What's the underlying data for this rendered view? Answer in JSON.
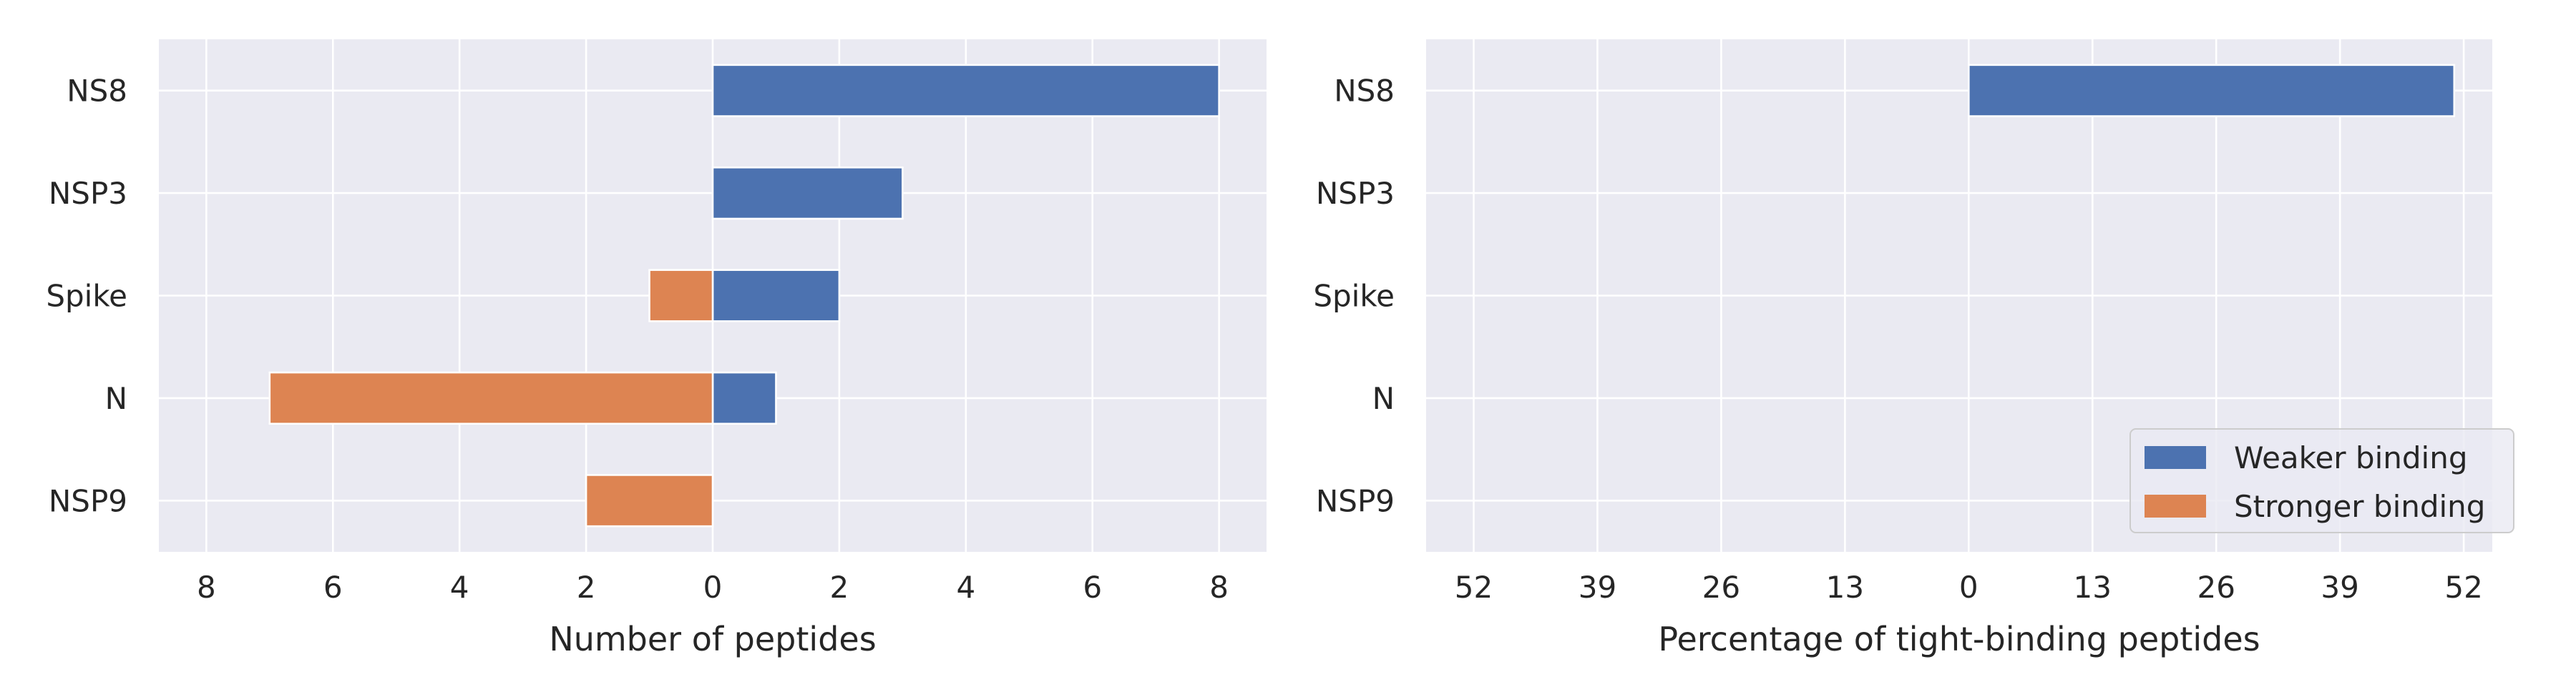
{
  "chart_data": [
    {
      "type": "bar",
      "orientation": "horizontal",
      "diverging": true,
      "categories": [
        "NS8",
        "NSP3",
        "Spike",
        "N",
        "NSP9"
      ],
      "series": [
        {
          "name": "Weaker binding",
          "values": [
            8,
            3,
            2,
            1,
            0
          ]
        },
        {
          "name": "Stronger binding",
          "values": [
            0,
            0,
            1,
            7,
            2
          ]
        }
      ],
      "xlabel": "Number of peptides",
      "xlim": [
        -8.75,
        8.75
      ],
      "xticks": [
        -8,
        -6,
        -4,
        -2,
        0,
        2,
        4,
        6,
        8
      ],
      "xtick_labels": [
        "8",
        "6",
        "4",
        "2",
        "0",
        "2",
        "4",
        "6",
        "8"
      ],
      "grid": true
    },
    {
      "type": "bar",
      "orientation": "horizontal",
      "diverging": true,
      "categories": [
        "NS8",
        "NSP3",
        "Spike",
        "N",
        "NSP9"
      ],
      "series": [
        {
          "name": "Weaker binding",
          "values": [
            51,
            0,
            0,
            0,
            0
          ]
        },
        {
          "name": "Stronger binding",
          "values": [
            0,
            0,
            0,
            0,
            0
          ]
        }
      ],
      "xlabel": "Percentage of tight-binding peptides",
      "xlim": [
        -57,
        55
      ],
      "xticks": [
        -52,
        -39,
        -26,
        -13,
        0,
        13,
        26,
        39,
        52
      ],
      "xtick_labels": [
        "52",
        "39",
        "26",
        "13",
        "0",
        "13",
        "26",
        "39",
        "52"
      ],
      "grid": true,
      "legend": {
        "position": "lower-right",
        "entries": [
          "Weaker binding",
          "Stronger binding"
        ]
      }
    }
  ],
  "colors": {
    "weaker": "#4c72b0",
    "stronger": "#dd8452",
    "panel_bg": "#eaeaf2",
    "grid": "#ffffff"
  }
}
